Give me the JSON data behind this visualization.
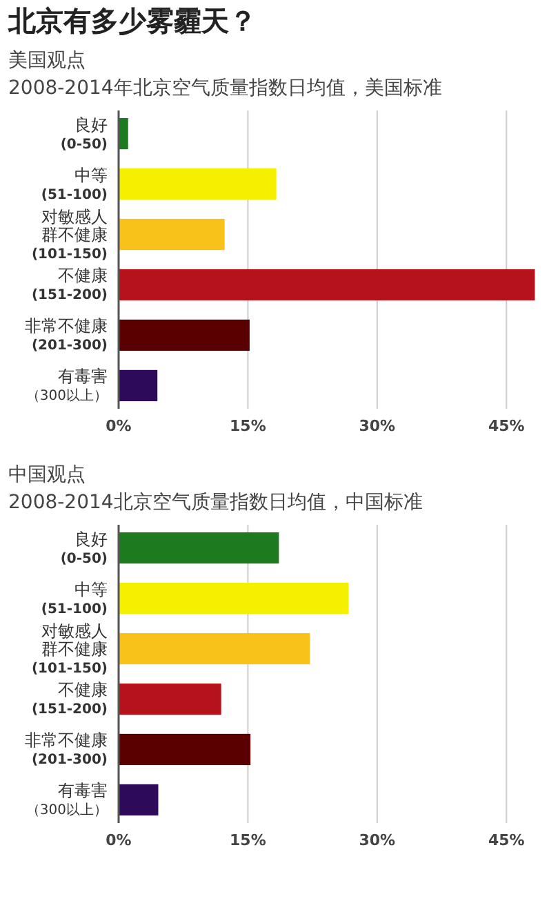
{
  "chart_data": [
    {
      "type": "bar",
      "orientation": "horizontal",
      "title": "北京有多少雾霾天？",
      "subtitle": "美国观点\n2008-2014年北京空气质量指数日均值，美国标准",
      "categories": [
        "良好(0-50)",
        "中等(51-100)",
        "对敏感人群不健康(101-150)",
        "不健康(151-200)",
        "非常不健康(201-300)",
        "有毒害（300以上）"
      ],
      "values": [
        1.1,
        18.3,
        12.3,
        48.3,
        15.2,
        4.5
      ],
      "colors": [
        "#1e7a1e",
        "#f5ef00",
        "#f9c21a",
        "#b5121b",
        "#5a0000",
        "#2e0a5a"
      ],
      "xlim": [
        0,
        48.5
      ],
      "xticks": [
        {
          "value": 0,
          "label": "0%"
        },
        {
          "value": 15,
          "label": "15%"
        },
        {
          "value": 30,
          "label": "30%"
        },
        {
          "value": 45,
          "label": "45%"
        }
      ],
      "grid": "x"
    },
    {
      "type": "bar",
      "orientation": "horizontal",
      "subtitle": "中国观点\n2008-2014北京空气质量指数日均值，中国标准",
      "categories": [
        "良好(0-50)",
        "中等(51-100)",
        "对敏感人群不健康(101-150)",
        "不健康(151-200)",
        "非常不健康(201-300)",
        "有毒害（300以上）"
      ],
      "values": [
        18.6,
        26.7,
        22.2,
        11.9,
        15.3,
        4.6
      ],
      "colors": [
        "#1e7a1e",
        "#f5ef00",
        "#f9c21a",
        "#b5121b",
        "#5a0000",
        "#2e0a5a"
      ],
      "xlim": [
        0,
        45
      ],
      "xticks": [
        {
          "value": 0,
          "label": "0%"
        },
        {
          "value": 15,
          "label": "15%"
        },
        {
          "value": 30,
          "label": "30%"
        },
        {
          "value": 45,
          "label": "45%"
        }
      ],
      "grid": "x"
    }
  ]
}
